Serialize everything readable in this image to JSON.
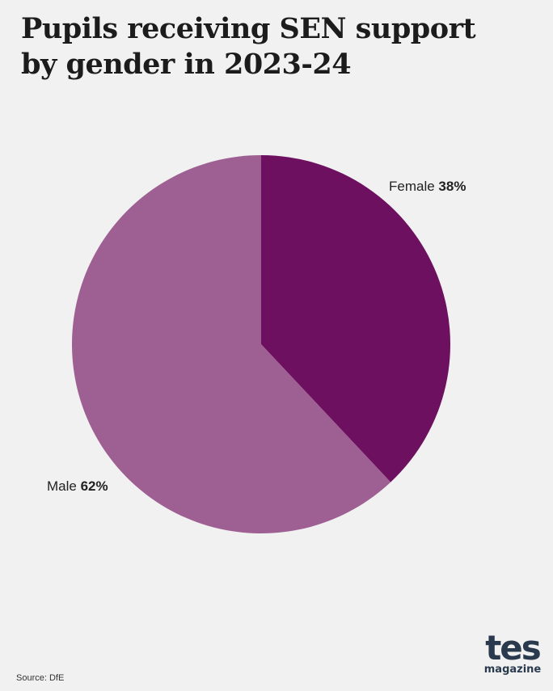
{
  "title_lines": [
    "Pupils receiving SEN support",
    "by gender in 2023-24"
  ],
  "source": "Source: DfE",
  "logo": {
    "word": "tes",
    "sub": "magazine"
  },
  "chart_data": {
    "type": "pie",
    "title": "Pupils receiving SEN support by gender in 2023-24",
    "slices": [
      {
        "label": "Female",
        "value": 38,
        "value_label": "38%",
        "color": "#6e1060"
      },
      {
        "label": "Male",
        "value": 62,
        "value_label": "62%",
        "color": "#9e5f92"
      }
    ],
    "start_angle": "12 o'clock",
    "direction": "clockwise",
    "legend": "none"
  }
}
